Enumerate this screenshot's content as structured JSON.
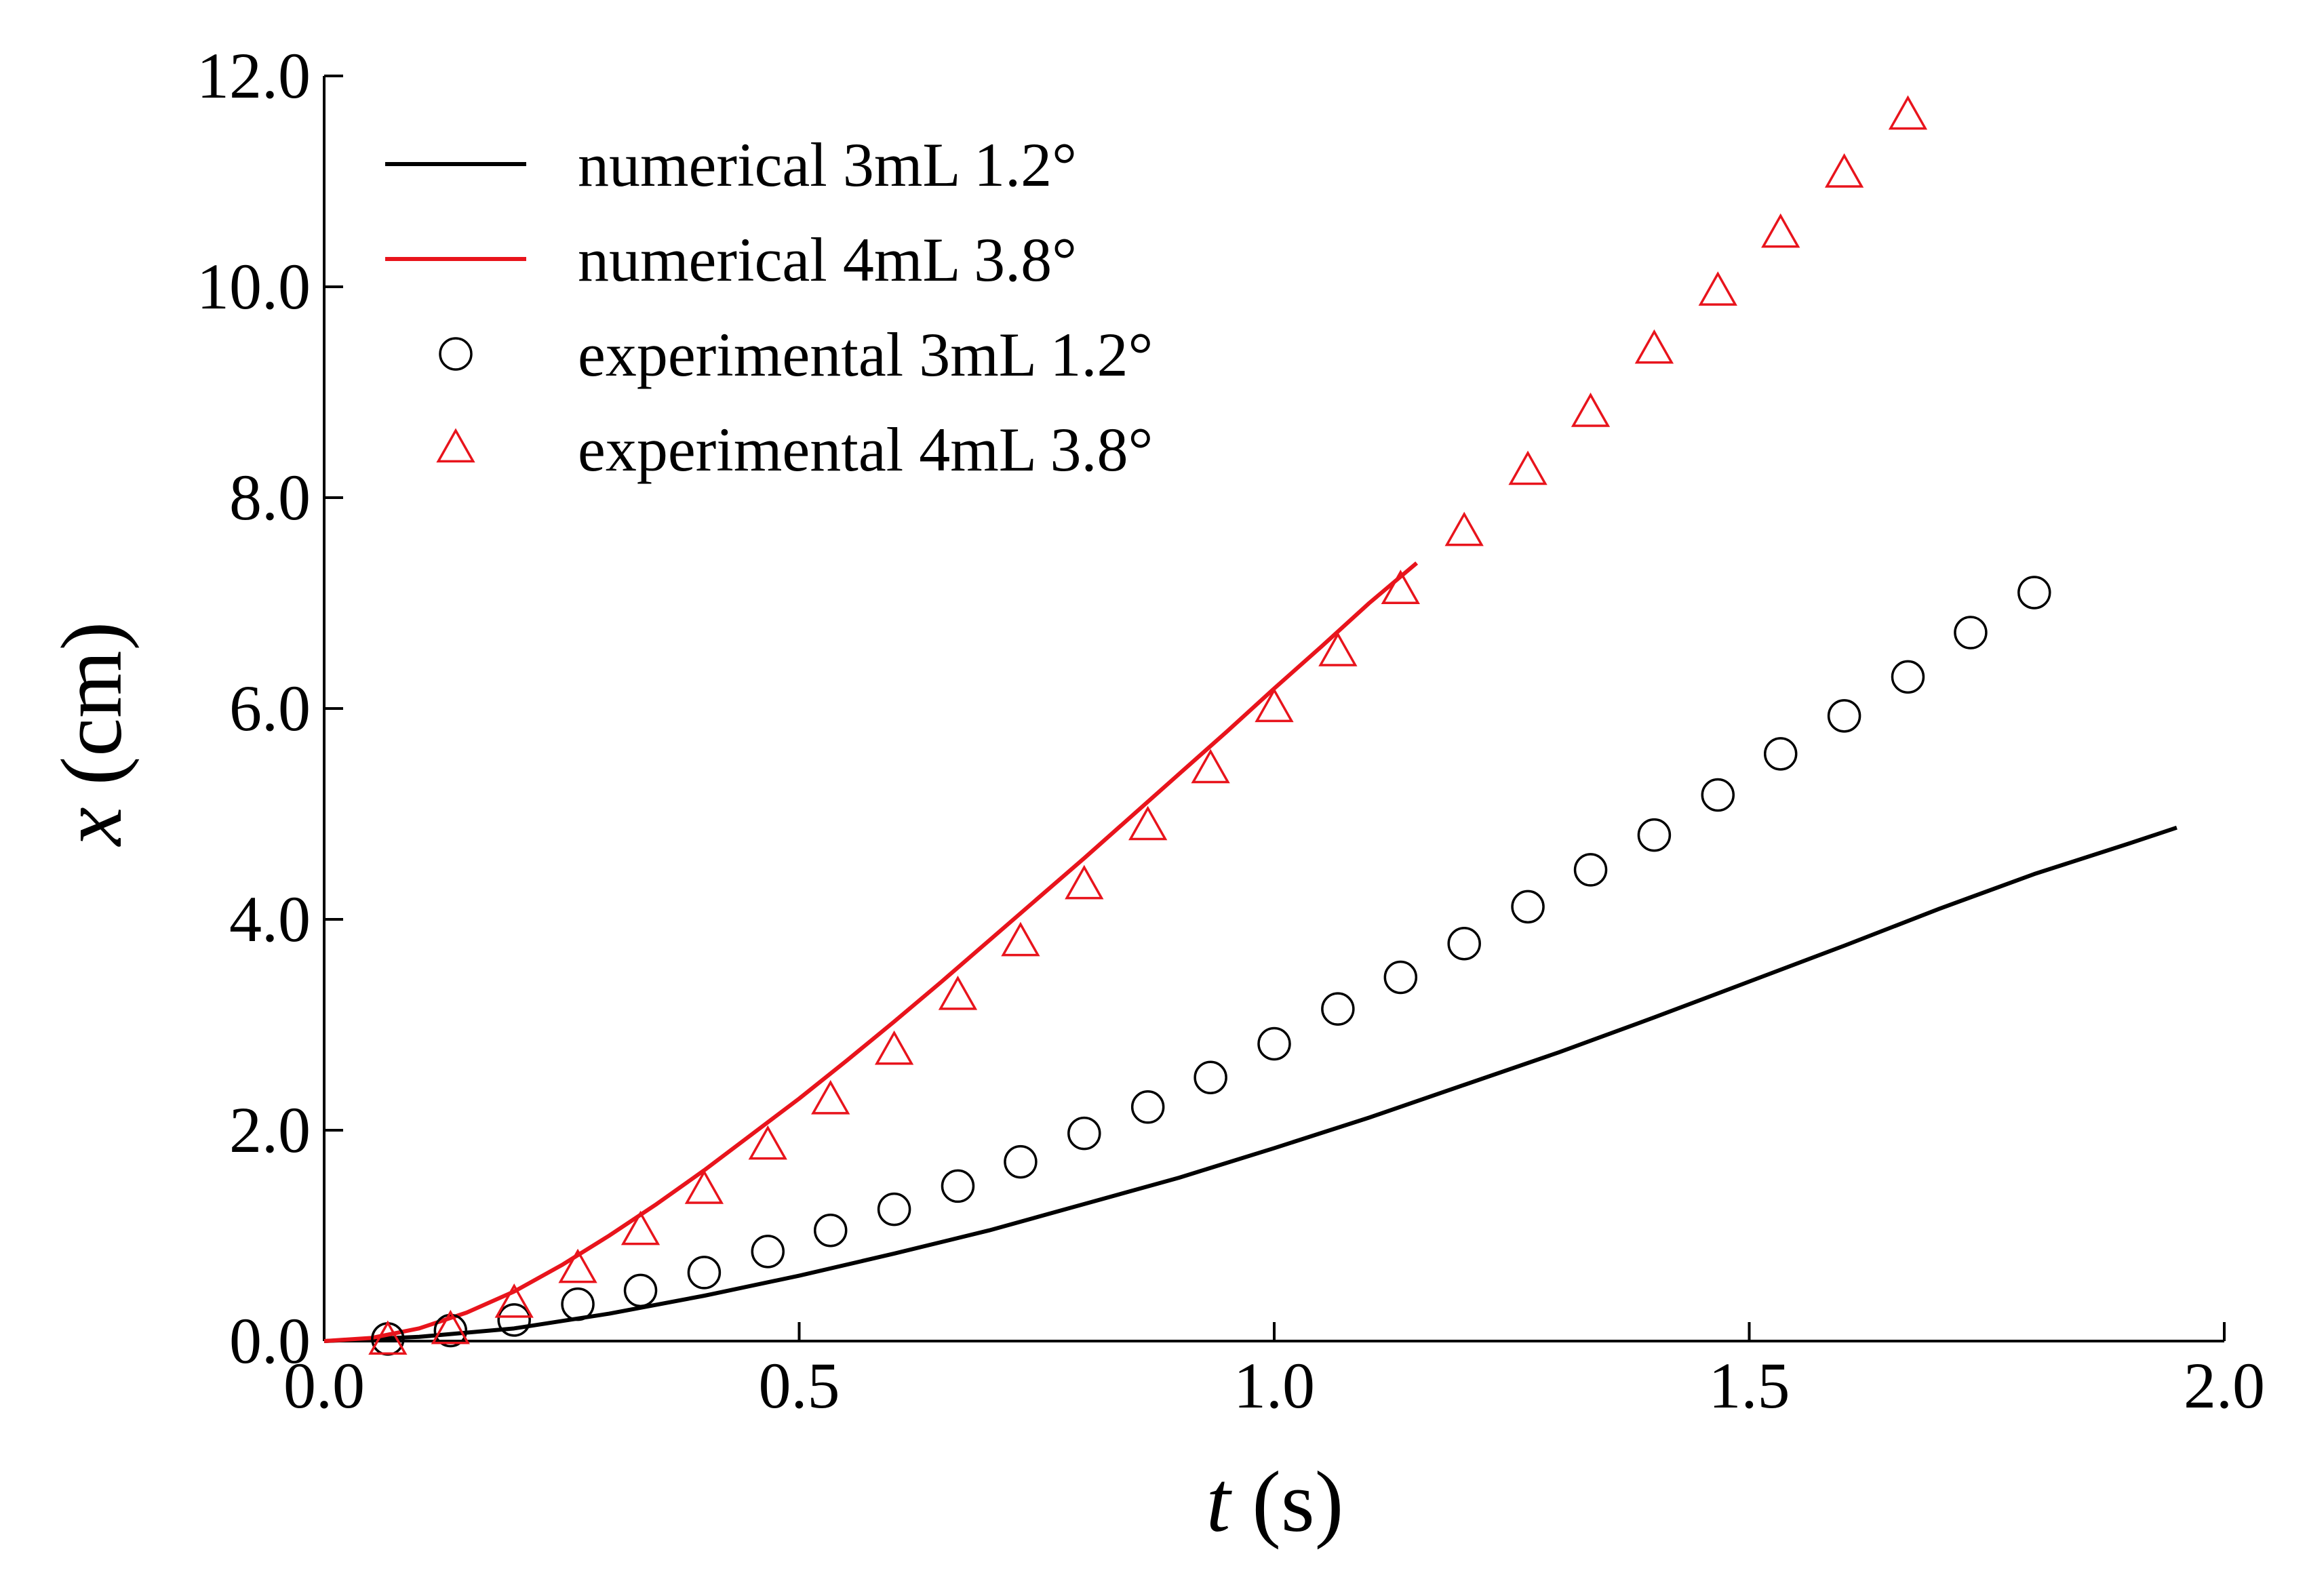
{
  "chart_data": {
    "type": "scatter",
    "xlabel_var": "t",
    "xlabel_unit": " (s)",
    "ylabel_var": "x",
    "ylabel_unit": " (cm)",
    "xlim": [
      0.0,
      2.0
    ],
    "ylim": [
      0.0,
      12.0
    ],
    "xticks": [
      "0.0",
      "0.5",
      "1.0",
      "1.5",
      "2.0"
    ],
    "yticks": [
      "0.0",
      "2.0",
      "4.0",
      "6.0",
      "8.0",
      "10.0",
      "12.0"
    ],
    "xtick_values": [
      0.0,
      0.5,
      1.0,
      1.5,
      2.0
    ],
    "ytick_values": [
      0.0,
      2.0,
      4.0,
      6.0,
      8.0,
      10.0,
      12.0
    ],
    "grid": false,
    "legend_position": "top-left",
    "colors": {
      "black": "#000000",
      "red": "#e8141c"
    },
    "series": [
      {
        "name": "numerical 3mL 1.2°",
        "kind": "line",
        "color": "#000000",
        "x": [
          0.0,
          0.1,
          0.2,
          0.3,
          0.4,
          0.5,
          0.6,
          0.7,
          0.8,
          0.9,
          1.0,
          1.1,
          1.2,
          1.3,
          1.4,
          1.5,
          1.6,
          1.7,
          1.8,
          1.9,
          1.95
        ],
        "y": [
          0.0,
          0.04,
          0.12,
          0.26,
          0.43,
          0.62,
          0.83,
          1.05,
          1.3,
          1.55,
          1.83,
          2.12,
          2.43,
          2.74,
          3.07,
          3.41,
          3.75,
          4.1,
          4.43,
          4.72,
          4.87
        ]
      },
      {
        "name": "numerical 4mL 3.8°",
        "kind": "line",
        "color": "#e8141c",
        "x": [
          0.0,
          0.05,
          0.1,
          0.15,
          0.2,
          0.25,
          0.3,
          0.35,
          0.4,
          0.45,
          0.5,
          0.55,
          0.6,
          0.65,
          0.7,
          0.75,
          0.8,
          0.85,
          0.9,
          0.95,
          1.0,
          1.05,
          1.1,
          1.15
        ],
        "y": [
          0.0,
          0.03,
          0.12,
          0.27,
          0.47,
          0.72,
          1.0,
          1.3,
          1.62,
          1.96,
          2.3,
          2.66,
          3.03,
          3.41,
          3.8,
          4.19,
          4.58,
          4.98,
          5.38,
          5.78,
          6.19,
          6.59,
          7.0,
          7.38
        ]
      },
      {
        "name": "experimental 3mL 1.2°",
        "kind": "circle",
        "color": "#000000",
        "x": [
          0.067,
          0.133,
          0.2,
          0.267,
          0.333,
          0.4,
          0.467,
          0.533,
          0.6,
          0.667,
          0.733,
          0.8,
          0.867,
          0.933,
          1.0,
          1.067,
          1.133,
          1.2,
          1.267,
          1.333,
          1.4,
          1.467,
          1.533,
          1.6,
          1.667,
          1.733,
          1.8
        ],
        "y": [
          0.02,
          0.1,
          0.2,
          0.35,
          0.48,
          0.65,
          0.85,
          1.05,
          1.25,
          1.47,
          1.7,
          1.97,
          2.22,
          2.5,
          2.82,
          3.15,
          3.45,
          3.77,
          4.12,
          4.47,
          4.8,
          5.18,
          5.57,
          5.93,
          6.3,
          6.72,
          7.1
        ]
      },
      {
        "name": "experimental 4mL 3.8°",
        "kind": "triangle",
        "color": "#e8141c",
        "x": [
          0.067,
          0.133,
          0.2,
          0.267,
          0.333,
          0.4,
          0.467,
          0.533,
          0.6,
          0.667,
          0.733,
          0.8,
          0.867,
          0.933,
          1.0,
          1.067,
          1.133,
          1.2,
          1.267,
          1.333,
          1.4,
          1.467,
          1.533,
          1.6,
          1.667
        ],
        "y": [
          0.0,
          0.1,
          0.35,
          0.68,
          1.04,
          1.43,
          1.85,
          2.28,
          2.75,
          3.27,
          3.78,
          4.32,
          4.88,
          5.42,
          6.0,
          6.53,
          7.12,
          7.67,
          8.25,
          8.8,
          9.4,
          9.95,
          10.5,
          11.07,
          11.62
        ]
      }
    ]
  }
}
